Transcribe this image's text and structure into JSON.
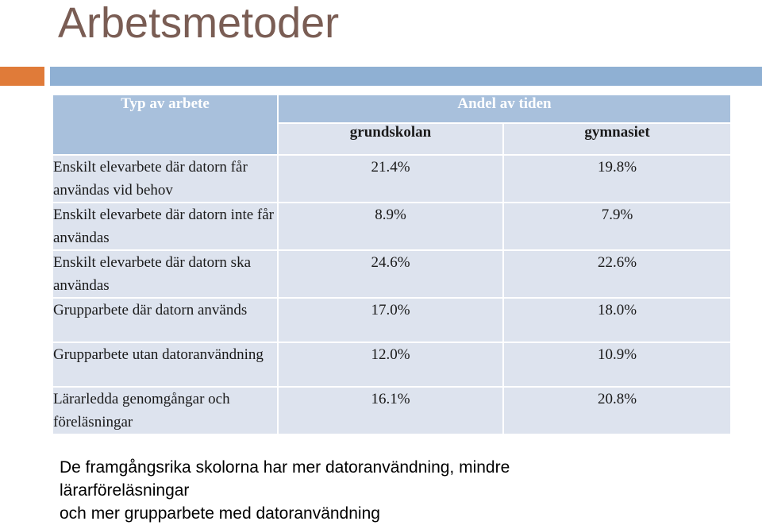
{
  "slide": {
    "title": "Arbetsmetoder",
    "accent_colors": {
      "orange": "#e07b39",
      "blue": "#8fb0d3"
    }
  },
  "table": {
    "header_type": "Typ av arbete",
    "header_andel": "Andel av tiden",
    "col_grundskolan": "grundskolan",
    "col_gymnasiet": "gymnasiet",
    "rows": [
      {
        "label": "Enskilt elevarbete där datorn får användas vid behov",
        "grundskolan": "21.4%",
        "gymnasiet": "19.8%"
      },
      {
        "label": "Enskilt elevarbete där datorn inte får användas",
        "grundskolan": "8.9%",
        "gymnasiet": "7.9%"
      },
      {
        "label": "Enskilt elevarbete där datorn ska användas",
        "grundskolan": "24.6%",
        "gymnasiet": "22.6%"
      },
      {
        "label": "Grupparbete där datorn används",
        "grundskolan": "17.0%",
        "gymnasiet": "18.0%"
      },
      {
        "label": "Grupparbete utan datoranvändning",
        "grundskolan": "12.0%",
        "gymnasiet": "10.9%"
      },
      {
        "label": "Lärarledda genomgångar och föreläsningar",
        "grundskolan": "16.1%",
        "gymnasiet": "20.8%"
      }
    ]
  },
  "footer": {
    "line1": "De framgångsrika skolorna har mer datoranvändning, mindre",
    "line2": "lärarföreläsningar",
    "line3": "och mer grupparbete med datoranvändning"
  }
}
